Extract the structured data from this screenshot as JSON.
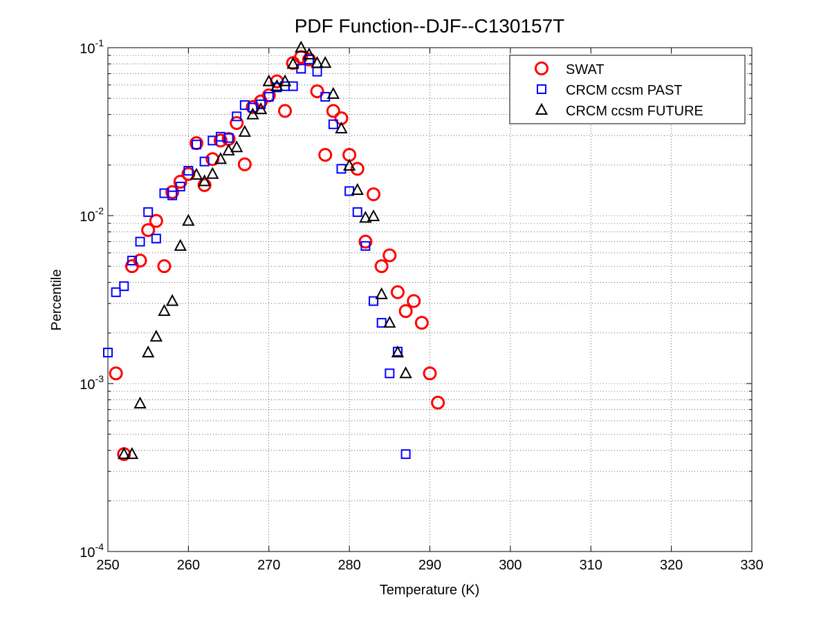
{
  "chart_data": {
    "type": "scatter",
    "title": "PDF Function--DJF--C130157T",
    "xlabel": "Temperature (K)",
    "ylabel": "Percentile",
    "xlim": [
      250,
      330
    ],
    "ylim": [
      0.0001,
      0.1
    ],
    "yscale": "log",
    "grid": true,
    "legend_position": "top-right",
    "xticks": [
      "250",
      "260",
      "270",
      "280",
      "290",
      "300",
      "310",
      "320",
      "330"
    ],
    "yticks": [
      {
        "base": "10",
        "exp": "-4"
      },
      {
        "base": "10",
        "exp": "-3"
      },
      {
        "base": "10",
        "exp": "-2"
      },
      {
        "base": "10",
        "exp": "-1"
      }
    ],
    "series": [
      {
        "name": "SWAT",
        "marker": "circle",
        "color": "#ff0000",
        "x": [
          251,
          252,
          253,
          254,
          255,
          256,
          257,
          258,
          259,
          260,
          261,
          262,
          263,
          264,
          265,
          266,
          267,
          268,
          269,
          270,
          271,
          272,
          273,
          274,
          275,
          276,
          277,
          278,
          279,
          280,
          281,
          282,
          283,
          284,
          285,
          286,
          287,
          288,
          289,
          290,
          291
        ],
        "y": [
          0.00115,
          0.00038,
          0.005,
          0.0054,
          0.0082,
          0.0093,
          0.005,
          0.0138,
          0.0159,
          0.0177,
          0.027,
          0.0152,
          0.0217,
          0.028,
          0.0286,
          0.0356,
          0.0202,
          0.0443,
          0.0478,
          0.052,
          0.063,
          0.042,
          0.081,
          0.088,
          0.085,
          0.055,
          0.023,
          0.042,
          0.038,
          0.023,
          0.019,
          0.007,
          0.0134,
          0.005,
          0.0058,
          0.0035,
          0.0027,
          0.0031,
          0.0023,
          0.00115,
          0.00077
        ]
      },
      {
        "name": "CRCM ccsm PAST",
        "marker": "square",
        "color": "#0000ff",
        "x": [
          250,
          251,
          252,
          253,
          254,
          255,
          256,
          257,
          258,
          259,
          260,
          261,
          262,
          263,
          264,
          265,
          266,
          267,
          268,
          269,
          270,
          271,
          272,
          273,
          274,
          275,
          276,
          277,
          278,
          279,
          280,
          281,
          282,
          283,
          284,
          285,
          286,
          287
        ],
        "y": [
          0.00153,
          0.0035,
          0.0038,
          0.0054,
          0.007,
          0.0105,
          0.0073,
          0.0136,
          0.0132,
          0.0149,
          0.0185,
          0.0265,
          0.021,
          0.028,
          0.0295,
          0.029,
          0.039,
          0.0455,
          0.044,
          0.046,
          0.051,
          0.058,
          0.059,
          0.059,
          0.075,
          0.085,
          0.072,
          0.051,
          0.035,
          0.019,
          0.014,
          0.0105,
          0.0066,
          0.0031,
          0.0023,
          0.00115,
          0.00155,
          0.00038
        ]
      },
      {
        "name": "CRCM ccsm FUTURE",
        "marker": "triangle",
        "color": "#000000",
        "x": [
          252,
          253,
          254,
          255,
          256,
          257,
          258,
          259,
          260,
          261,
          262,
          263,
          264,
          265,
          266,
          267,
          268,
          269,
          270,
          271,
          272,
          273,
          274,
          275,
          276,
          277,
          278,
          279,
          280,
          281,
          282,
          283,
          284,
          285,
          286,
          287
        ],
        "y": [
          0.00038,
          0.00038,
          0.00076,
          0.00153,
          0.0019,
          0.0027,
          0.0031,
          0.0066,
          0.0093,
          0.0175,
          0.016,
          0.0177,
          0.0217,
          0.0244,
          0.0255,
          0.0315,
          0.04,
          0.043,
          0.063,
          0.059,
          0.063,
          0.08,
          0.1,
          0.091,
          0.081,
          0.081,
          0.053,
          0.033,
          0.0198,
          0.0142,
          0.0097,
          0.0099,
          0.0034,
          0.0023,
          0.00153,
          0.00115
        ]
      }
    ]
  }
}
